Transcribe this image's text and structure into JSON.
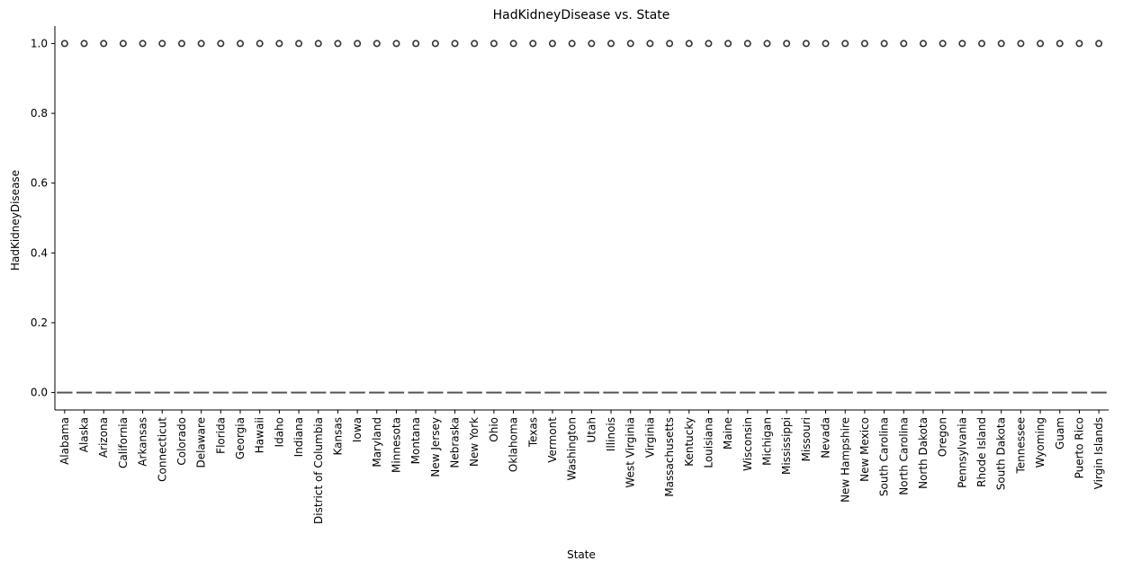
{
  "chart_data": {
    "type": "box",
    "title": "HadKidneyDisease vs. State",
    "xlabel": "State",
    "ylabel": "HadKidneyDisease",
    "ylim": [
      -0.05,
      1.05
    ],
    "yticks": [
      "0.0",
      "0.2",
      "0.4",
      "0.6",
      "0.8",
      "1.0"
    ],
    "ytick_values": [
      0,
      0.2,
      0.4,
      0.6,
      0.8,
      1.0
    ],
    "grid": false,
    "legend": "none",
    "categories": [
      "Alabama",
      "Alaska",
      "Arizona",
      "California",
      "Arkansas",
      "Connecticut",
      "Colorado",
      "Delaware",
      "Florida",
      "Georgia",
      "Hawaii",
      "Idaho",
      "Indiana",
      "District of Columbia",
      "Kansas",
      "Iowa",
      "Maryland",
      "Minnesota",
      "Montana",
      "New Jersey",
      "Nebraska",
      "New York",
      "Ohio",
      "Oklahoma",
      "Texas",
      "Vermont",
      "Washington",
      "Utah",
      "Illinois",
      "West Virginia",
      "Virginia",
      "Massachusetts",
      "Kentucky",
      "Louisiana",
      "Maine",
      "Wisconsin",
      "Michigan",
      "Mississippi",
      "Missouri",
      "Nevada",
      "New Hampshire",
      "New Mexico",
      "South Carolina",
      "North Carolina",
      "North Dakota",
      "Oregon",
      "Pennsylvania",
      "Rhode Island",
      "South Dakota",
      "Tennessee",
      "Wyoming",
      "Guam",
      "Puerto Rico",
      "Virgin Islands"
    ],
    "box_value": 0.0,
    "outlier_value": 1.0,
    "colors": {
      "box_line": "#555555",
      "outlier": "#333333",
      "axis": "#000000"
    }
  }
}
